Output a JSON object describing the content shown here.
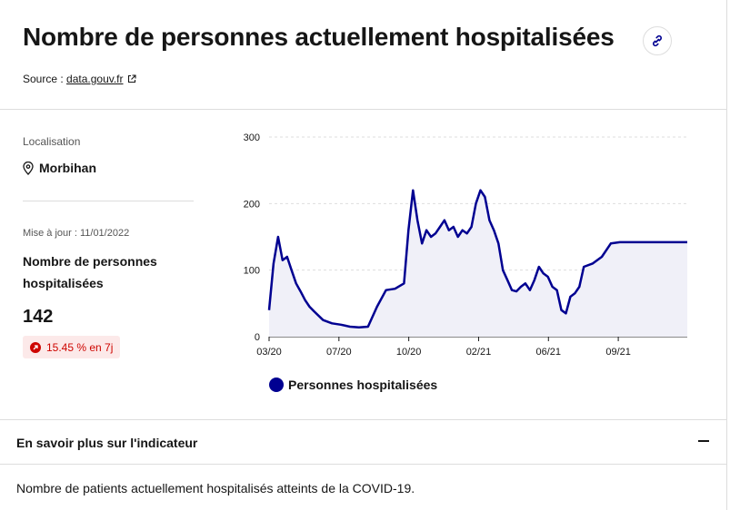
{
  "header": {
    "title": "Nombre de personnes actuellement hospitalisées",
    "source_prefix": "Source : ",
    "source_link": "data.gouv.fr"
  },
  "sidebar": {
    "location_label": "Localisation",
    "location_value": "Morbihan",
    "update_label": "Mise à jour : 11/01/2022",
    "indicator_name": "Nombre de personnes hospitalisées",
    "value": "142",
    "trend": "15.45 % en 7j"
  },
  "legend": {
    "label": "Personnes hospitalisées"
  },
  "accordion": {
    "title": "En savoir plus sur l'indicateur",
    "body": "Nombre de patients actuellement hospitalisés atteints de la COVID-19."
  },
  "colors": {
    "series": "#000091",
    "area": "#f0f0f8",
    "trend": "#ce0500"
  },
  "chart_data": {
    "type": "area",
    "x_ticks": [
      "03/20",
      "07/20",
      "10/20",
      "02/21",
      "06/21",
      "09/21"
    ],
    "y_ticks": [
      0,
      100,
      200,
      300
    ],
    "ylim": [
      0,
      300
    ],
    "xlim": [
      0,
      93
    ],
    "x_unit": "weeks from start of data",
    "series": [
      {
        "name": "Personnes hospitalisées",
        "x": [
          0,
          1,
          2,
          3,
          4,
          5,
          6,
          7,
          8,
          9,
          10,
          12,
          14,
          16,
          18,
          20,
          22,
          24,
          26,
          28,
          30,
          31,
          32,
          33,
          34,
          35,
          36,
          37,
          38,
          39,
          40,
          41,
          42,
          43,
          44,
          45,
          46,
          47,
          48,
          49,
          50,
          51,
          52,
          53,
          54,
          55,
          56,
          57,
          58,
          59,
          60,
          61,
          62,
          63,
          64,
          65,
          66,
          67,
          68,
          69,
          70,
          72,
          74,
          76,
          78,
          80,
          82,
          84,
          86,
          87,
          88,
          89,
          90,
          91,
          92,
          93
        ],
        "values": [
          40,
          110,
          150,
          115,
          120,
          100,
          80,
          68,
          55,
          45,
          38,
          25,
          20,
          18,
          15,
          14,
          15,
          45,
          70,
          72,
          80,
          160,
          220,
          175,
          140,
          160,
          150,
          155,
          165,
          175,
          160,
          165,
          150,
          160,
          155,
          165,
          200,
          220,
          210,
          175,
          160,
          140,
          100,
          85,
          70,
          68,
          75,
          80,
          70,
          85,
          105,
          95,
          90,
          75,
          70,
          40,
          35,
          60,
          65,
          75,
          105,
          110,
          120,
          140,
          142,
          142,
          142,
          142,
          142,
          142,
          142,
          142,
          142,
          142,
          142,
          142
        ]
      }
    ]
  }
}
